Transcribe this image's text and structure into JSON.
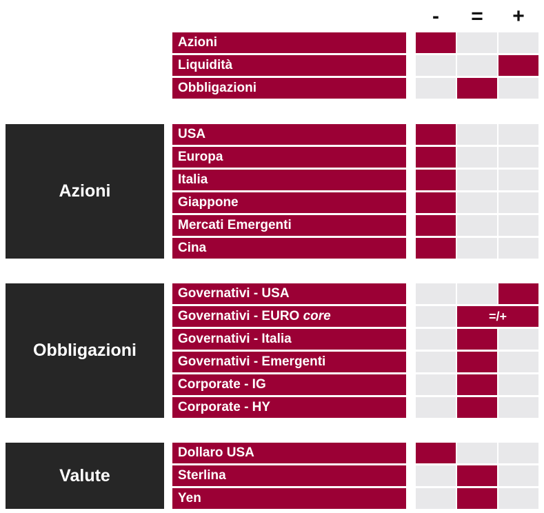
{
  "columns": [
    "-",
    "=",
    "+"
  ],
  "colors": {
    "accent": "#9b0035",
    "empty": "#e8e8ea",
    "section": "#262626"
  },
  "groups": [
    {
      "title": "",
      "rows": [
        {
          "label": "Azioni",
          "value": "-"
        },
        {
          "label": "Liquidità",
          "value": "+"
        },
        {
          "label": "Obbligazioni",
          "value": "="
        }
      ]
    },
    {
      "title": "Azioni",
      "rows": [
        {
          "label": "USA",
          "value": "-"
        },
        {
          "label": "Europa",
          "value": "-"
        },
        {
          "label": "Italia",
          "value": "-"
        },
        {
          "label": "Giappone",
          "value": "-"
        },
        {
          "label": "Mercati Emergenti",
          "value": "-"
        },
        {
          "label": "Cina",
          "value": "-"
        }
      ]
    },
    {
      "title": "Obbligazioni",
      "rows": [
        {
          "label": "Governativi - USA",
          "value": "+"
        },
        {
          "label": "Governativi - EURO",
          "label_italic": "core",
          "value": "=/+",
          "merged_text": "=/+"
        },
        {
          "label": "Governativi - Italia",
          "value": "="
        },
        {
          "label": "Governativi - Emergenti",
          "value": "="
        },
        {
          "label": "Corporate - IG",
          "value": "="
        },
        {
          "label": "Corporate - HY",
          "value": "="
        }
      ]
    },
    {
      "title": "Valute",
      "rows": [
        {
          "label": "Dollaro USA",
          "value": "-"
        },
        {
          "label": "Sterlina",
          "value": "="
        },
        {
          "label": "Yen",
          "value": "="
        }
      ]
    }
  ]
}
